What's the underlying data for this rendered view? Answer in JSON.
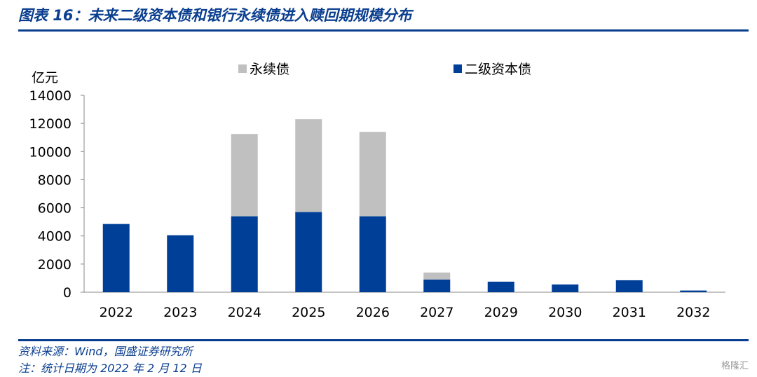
{
  "title": "图表 16：未来二级资本债和银行永续债进入赎回期规模分布",
  "footer": {
    "source": "资料来源：Wind，国盛证券研究所",
    "note": "注：统计日期为 2022 年 2 月 12 日"
  },
  "watermark": "格隆汇",
  "colors": {
    "accent": "#0a3e8f",
    "tier2": "#003f98",
    "perpetual": "#c0c0c0"
  },
  "chart_data": {
    "type": "bar",
    "stacked": true,
    "ylabel": "亿元",
    "ylim": [
      0,
      14000
    ],
    "yticks": [
      0,
      2000,
      4000,
      6000,
      8000,
      10000,
      12000,
      14000
    ],
    "categories": [
      "2022",
      "2023",
      "2024",
      "2025",
      "2026",
      "2027",
      "2029",
      "2030",
      "2031",
      "2032"
    ],
    "series": [
      {
        "name": "二级资本债",
        "color": "#003f98",
        "values": [
          4850,
          4050,
          5400,
          5700,
          5400,
          900,
          750,
          550,
          850,
          120
        ]
      },
      {
        "name": "永续债",
        "color": "#c0c0c0",
        "values": [
          0,
          0,
          5850,
          6600,
          6000,
          500,
          0,
          0,
          0,
          0
        ]
      }
    ],
    "legend": [
      "永续债",
      "二级资本债"
    ],
    "grid": false
  }
}
